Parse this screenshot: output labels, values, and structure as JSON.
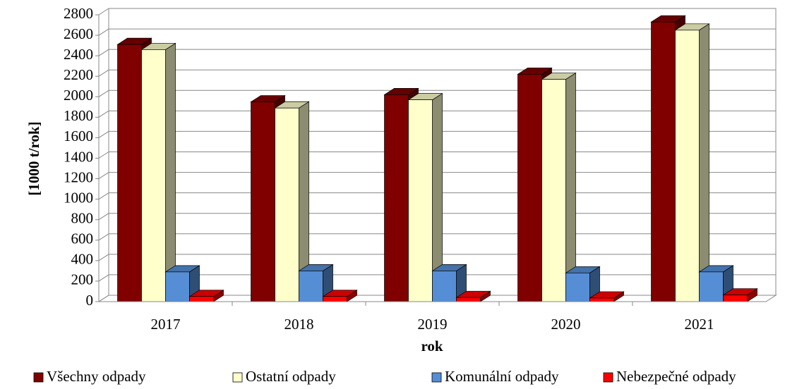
{
  "chart_data": {
    "type": "bar3d",
    "xlabel": "rok",
    "ylabel": "[1000 t/rok]",
    "categories": [
      "2017",
      "2018",
      "2019",
      "2020",
      "2021"
    ],
    "series": [
      {
        "name": "Všechny odpady",
        "color": "#800000",
        "values": [
          2510,
          1950,
          2020,
          2220,
          2730
        ]
      },
      {
        "name": "Ostatní odpady",
        "color": "#ffffcc",
        "values": [
          2460,
          1890,
          1970,
          2170,
          2650
        ]
      },
      {
        "name": "Komunální odpady",
        "color": "#558ed5",
        "values": [
          290,
          300,
          300,
          280,
          290
        ]
      },
      {
        "name": "Nebezpečné odpady",
        "color": "#ff0000",
        "values": [
          50,
          50,
          40,
          35,
          65
        ]
      }
    ],
    "ylim": [
      0,
      2800
    ],
    "yticks": [
      0,
      200,
      400,
      600,
      800,
      1000,
      1200,
      1400,
      1600,
      1800,
      2000,
      2200,
      2400,
      2600,
      2800
    ],
    "grid": true,
    "legend": "bottom"
  }
}
